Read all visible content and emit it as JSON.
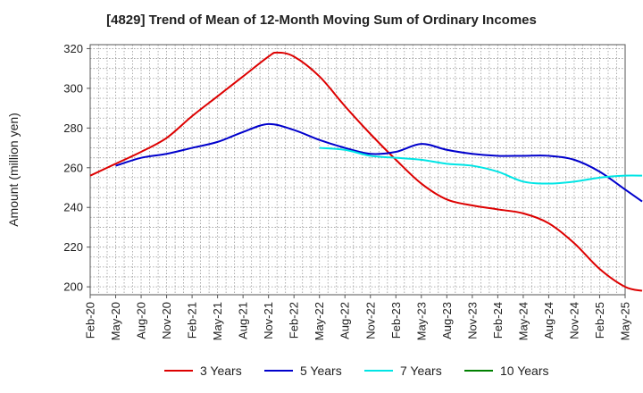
{
  "chart_data": {
    "type": "line",
    "title": "[4829]  Trend of Mean of 12-Month Moving Sum of Ordinary Incomes",
    "ylabel": "Amount (million yen)",
    "xlabel": "",
    "ylim": [
      196,
      322
    ],
    "yticks": [
      200,
      220,
      240,
      260,
      280,
      300,
      320
    ],
    "xticks": [
      "Feb-20",
      "May-20",
      "Aug-20",
      "Nov-20",
      "Feb-21",
      "May-21",
      "Aug-21",
      "Nov-21",
      "Feb-22",
      "May-22",
      "Aug-22",
      "Nov-22",
      "Feb-23",
      "May-23",
      "Aug-23",
      "Nov-23",
      "Feb-24",
      "May-24",
      "Aug-24",
      "Nov-24",
      "Feb-25",
      "May-25"
    ],
    "x_unit": "month index from Feb-20",
    "series": [
      {
        "name": "3 Years",
        "color": "#dd0000",
        "points": [
          [
            0,
            256
          ],
          [
            3,
            262
          ],
          [
            6,
            268
          ],
          [
            9,
            275
          ],
          [
            12,
            286
          ],
          [
            15,
            296
          ],
          [
            18,
            306
          ],
          [
            21,
            316
          ],
          [
            22,
            318
          ],
          [
            24,
            316
          ],
          [
            27,
            306
          ],
          [
            30,
            291
          ],
          [
            33,
            277
          ],
          [
            36,
            264
          ],
          [
            39,
            252
          ],
          [
            42,
            244
          ],
          [
            45,
            241
          ],
          [
            48,
            239
          ],
          [
            51,
            237
          ],
          [
            54,
            232
          ],
          [
            57,
            222
          ],
          [
            60,
            209
          ],
          [
            63,
            200
          ],
          [
            65,
            198
          ]
        ]
      },
      {
        "name": "5 Years",
        "color": "#0000cc",
        "points": [
          [
            3,
            261
          ],
          [
            6,
            265
          ],
          [
            9,
            267
          ],
          [
            12,
            270
          ],
          [
            15,
            273
          ],
          [
            18,
            278
          ],
          [
            21,
            282
          ],
          [
            24,
            279
          ],
          [
            27,
            274
          ],
          [
            30,
            270
          ],
          [
            33,
            267
          ],
          [
            36,
            268
          ],
          [
            39,
            272
          ],
          [
            42,
            269
          ],
          [
            45,
            267
          ],
          [
            48,
            266
          ],
          [
            51,
            266
          ],
          [
            54,
            266
          ],
          [
            57,
            264
          ],
          [
            60,
            258
          ],
          [
            63,
            249
          ],
          [
            65,
            243
          ]
        ]
      },
      {
        "name": "7 Years",
        "color": "#00e5e5",
        "points": [
          [
            27,
            270
          ],
          [
            30,
            269
          ],
          [
            33,
            266
          ],
          [
            36,
            265
          ],
          [
            39,
            264
          ],
          [
            42,
            262
          ],
          [
            45,
            261
          ],
          [
            48,
            258
          ],
          [
            51,
            253
          ],
          [
            54,
            252
          ],
          [
            57,
            253
          ],
          [
            60,
            255
          ],
          [
            63,
            256
          ],
          [
            65,
            256
          ]
        ]
      },
      {
        "name": "10 Years",
        "color": "#008000",
        "points": []
      }
    ],
    "legend_position": "bottom",
    "grid": true
  }
}
